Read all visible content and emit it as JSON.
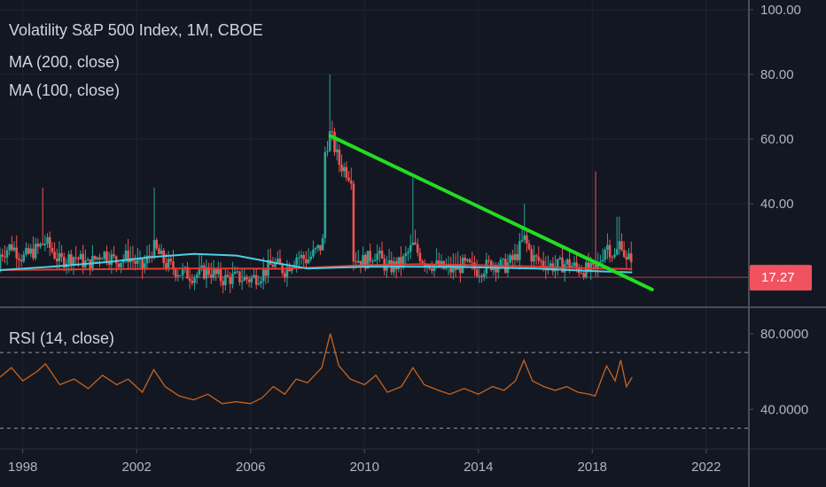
{
  "legend": {
    "title": "Volatility S&P 500 Index, 1M, CBOE",
    "ma200": "MA (200, close)",
    "ma100": "MA (100, close)",
    "rsi": "RSI (14, close)"
  },
  "price_badge": {
    "label": "17.27",
    "value": 17.27,
    "color": "#f0525f"
  },
  "colors": {
    "background": "#131722",
    "grid": "#1f2433",
    "candle_up": "#26a69a",
    "candle_down": "#ef5350",
    "ma200": "#e53935",
    "ma100": "#4dd0e1",
    "trendline": "#22dd22",
    "rsi": "#c8641e",
    "axis_text": "#b2b5be"
  },
  "chart_data": [
    {
      "type": "candlestick",
      "title": "Volatility S&P 500 Index, 1M, CBOE",
      "y_ticks": [
        "100.00",
        "80.00",
        "60.00",
        "40.00"
      ],
      "ylim": [
        8,
        103
      ],
      "x_ticks": [
        "1998",
        "2002",
        "2006",
        "2010",
        "2014",
        "2018",
        "2022"
      ],
      "xlim": [
        1997.2,
        2023.5
      ],
      "last_value": 17.27,
      "series": [
        {
          "name": "MA (200, close)",
          "x": [
            1997.2,
            2001,
            2004,
            2007,
            2008,
            2010,
            2012,
            2014,
            2016,
            2017.5,
            2019.4
          ],
          "y": [
            19.5,
            19.8,
            20.0,
            19.9,
            20.2,
            21.0,
            21.3,
            21.0,
            20.6,
            20.1,
            19.8
          ]
        },
        {
          "name": "MA (100, close)",
          "x": [
            1997.2,
            1999,
            2001,
            2002.5,
            2004,
            2005.5,
            2007,
            2008,
            2010,
            2013,
            2016,
            2018,
            2019.4
          ],
          "y": [
            19.5,
            20.5,
            22.0,
            23.5,
            24.5,
            24.0,
            21.5,
            20.0,
            20.5,
            20.5,
            20.0,
            19.2,
            18.8
          ]
        },
        {
          "name": "Trend line",
          "x": [
            2008.8,
            2020.1
          ],
          "y": [
            61,
            13.5
          ]
        }
      ]
    },
    {
      "type": "line",
      "title": "RSI (14, close)",
      "y_ticks": [
        "80.0000",
        "40.0000"
      ],
      "ylim": [
        20,
        93
      ],
      "levels": [
        70,
        30
      ],
      "x": [
        1997.2,
        1997.6,
        1998,
        1998.5,
        1998.8,
        1999.3,
        1999.8,
        2000.3,
        2000.8,
        2001.3,
        2001.7,
        2002.2,
        2002.6,
        2003,
        2003.5,
        2004,
        2004.5,
        2005,
        2005.5,
        2006,
        2006.4,
        2006.8,
        2007.2,
        2007.6,
        2008,
        2008.5,
        2008.8,
        2009.1,
        2009.5,
        2010,
        2010.4,
        2010.8,
        2011.3,
        2011.7,
        2012.1,
        2012.6,
        2013,
        2013.5,
        2014,
        2014.5,
        2014.9,
        2015.3,
        2015.6,
        2015.9,
        2016.3,
        2016.7,
        2017.1,
        2017.5,
        2017.9,
        2018.1,
        2018.5,
        2018.8,
        2019,
        2019.2,
        2019.4
      ],
      "y": [
        57,
        62,
        55,
        60,
        64,
        53,
        56,
        51,
        58,
        53,
        56,
        49,
        61,
        52,
        47,
        45,
        48,
        43,
        44,
        43,
        46,
        52,
        48,
        56,
        54,
        62,
        80,
        63,
        56,
        53,
        58,
        49,
        52,
        62,
        53,
        50,
        48,
        51,
        48,
        52,
        50,
        55,
        66,
        55,
        52,
        50,
        52,
        49,
        48,
        47,
        63,
        55,
        66,
        52,
        57
      ]
    }
  ]
}
